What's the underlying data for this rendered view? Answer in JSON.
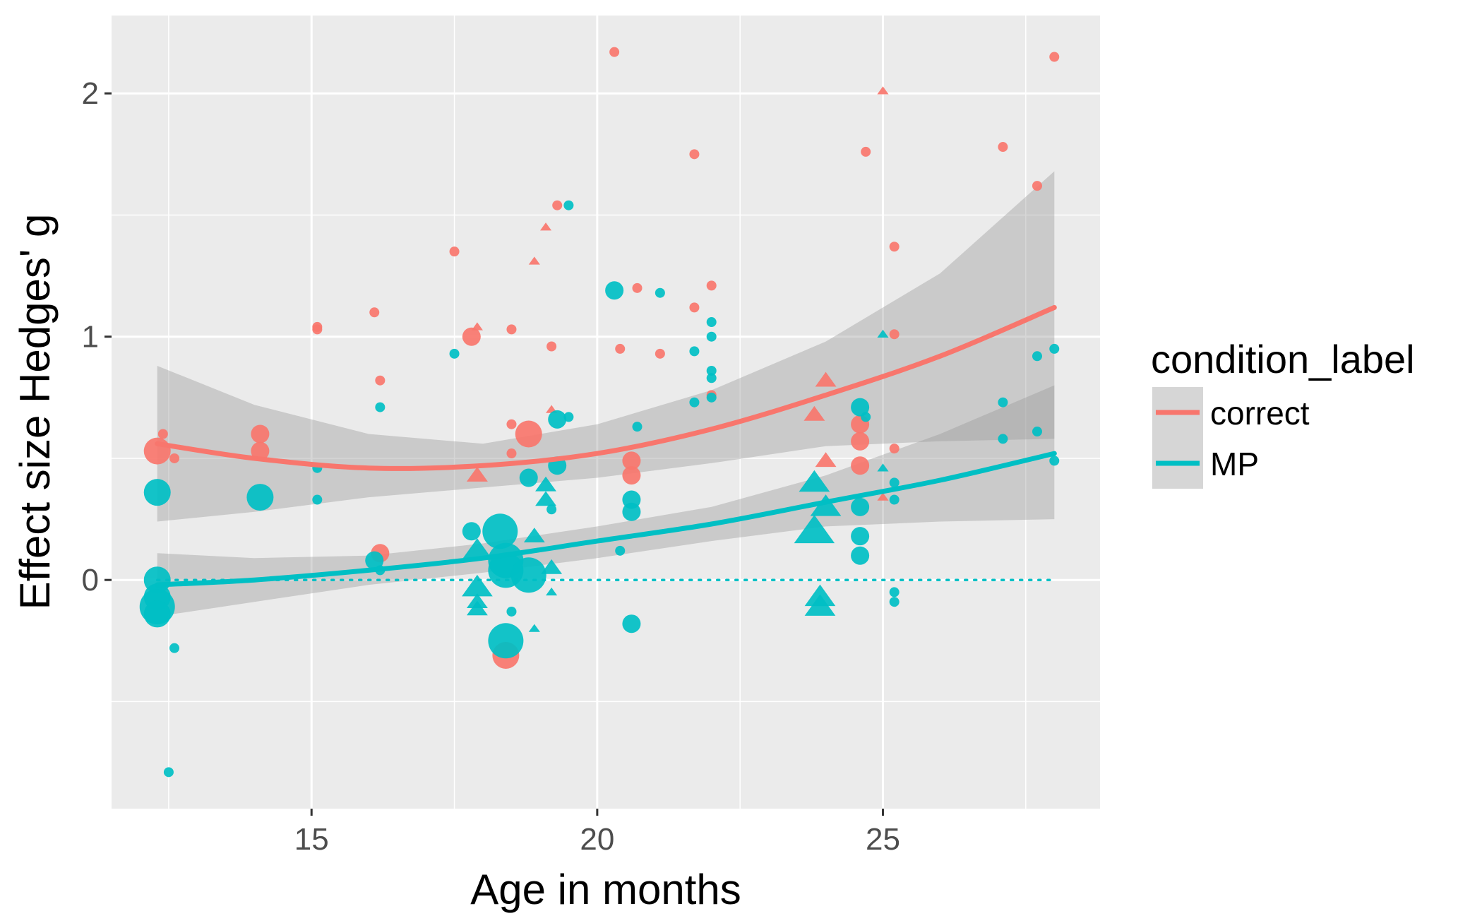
{
  "chart_data": {
    "type": "scatter",
    "xlabel": "Age in months",
    "ylabel": "Effect size Hedges' g",
    "xlim": [
      11.5,
      28.8
    ],
    "ylim": [
      -0.94,
      2.32
    ],
    "x_ticks": [
      15,
      20,
      25
    ],
    "y_ticks": [
      0,
      1,
      2
    ],
    "x_tick_labels": [
      "15",
      "20",
      "25"
    ],
    "y_tick_labels": [
      "0",
      "1",
      "2"
    ],
    "grid": true,
    "legend": {
      "title": "condition_label",
      "placement": "right",
      "entries": [
        "correct",
        "MP"
      ]
    },
    "colors": {
      "correct": "#F8766D",
      "MP": "#00BFC4",
      "panel": "#EBEBEB",
      "ribbon": "#999999"
    },
    "reference_line": {
      "y": 0,
      "style": "dotted",
      "x_range": [
        12.3,
        28
      ]
    },
    "series": [
      {
        "name": "correct",
        "smooth": {
          "x": [
            12.3,
            14,
            16,
            18,
            20,
            22,
            24,
            26,
            28
          ],
          "y": [
            0.56,
            0.5,
            0.46,
            0.47,
            0.52,
            0.62,
            0.76,
            0.92,
            1.12
          ],
          "lo": [
            0.24,
            0.28,
            0.34,
            0.38,
            0.42,
            0.48,
            0.55,
            0.57,
            0.58
          ],
          "hi": [
            0.88,
            0.72,
            0.6,
            0.56,
            0.64,
            0.78,
            0.98,
            1.26,
            1.68
          ]
        },
        "points": [
          {
            "x": 12.3,
            "y": 0.53,
            "size": 3,
            "shape": "circle"
          },
          {
            "x": 12.4,
            "y": 0.6,
            "size": 1,
            "shape": "circle"
          },
          {
            "x": 12.6,
            "y": 0.5,
            "size": 1,
            "shape": "circle"
          },
          {
            "x": 14.1,
            "y": 0.6,
            "size": 2,
            "shape": "circle"
          },
          {
            "x": 14.1,
            "y": 0.53,
            "size": 2,
            "shape": "circle"
          },
          {
            "x": 15.1,
            "y": 1.04,
            "size": 1,
            "shape": "circle"
          },
          {
            "x": 15.1,
            "y": 1.03,
            "size": 1,
            "shape": "circle"
          },
          {
            "x": 16.1,
            "y": 1.1,
            "size": 1,
            "shape": "circle"
          },
          {
            "x": 16.2,
            "y": 0.82,
            "size": 1,
            "shape": "circle"
          },
          {
            "x": 16.2,
            "y": 0.11,
            "size": 2,
            "shape": "circle"
          },
          {
            "x": 17.5,
            "y": 1.35,
            "size": 1,
            "shape": "circle"
          },
          {
            "x": 17.8,
            "y": 1.0,
            "size": 2,
            "shape": "circle"
          },
          {
            "x": 17.9,
            "y": 1.04,
            "size": 1,
            "shape": "triangle"
          },
          {
            "x": 17.9,
            "y": 0.43,
            "size": 2,
            "shape": "triangle"
          },
          {
            "x": 18.5,
            "y": 1.03,
            "size": 1,
            "shape": "circle"
          },
          {
            "x": 18.5,
            "y": 0.64,
            "size": 1,
            "shape": "circle"
          },
          {
            "x": 18.5,
            "y": 0.52,
            "size": 1,
            "shape": "circle"
          },
          {
            "x": 18.4,
            "y": -0.31,
            "size": 3,
            "shape": "circle"
          },
          {
            "x": 18.8,
            "y": 0.6,
            "size": 3,
            "shape": "circle"
          },
          {
            "x": 18.9,
            "y": 1.31,
            "size": 1,
            "shape": "triangle"
          },
          {
            "x": 19.1,
            "y": 1.45,
            "size": 1,
            "shape": "triangle"
          },
          {
            "x": 19.2,
            "y": 0.96,
            "size": 1,
            "shape": "circle"
          },
          {
            "x": 19.2,
            "y": 0.7,
            "size": 1,
            "shape": "triangle"
          },
          {
            "x": 19.3,
            "y": 1.54,
            "size": 1,
            "shape": "circle"
          },
          {
            "x": 20.3,
            "y": 2.17,
            "size": 1,
            "shape": "circle"
          },
          {
            "x": 20.4,
            "y": 0.95,
            "size": 1,
            "shape": "circle"
          },
          {
            "x": 20.6,
            "y": 0.49,
            "size": 2,
            "shape": "circle"
          },
          {
            "x": 20.6,
            "y": 0.43,
            "size": 2,
            "shape": "circle"
          },
          {
            "x": 20.7,
            "y": 1.2,
            "size": 1,
            "shape": "circle"
          },
          {
            "x": 21.1,
            "y": 0.93,
            "size": 1,
            "shape": "circle"
          },
          {
            "x": 21.7,
            "y": 1.75,
            "size": 1,
            "shape": "circle"
          },
          {
            "x": 21.7,
            "y": 1.12,
            "size": 1,
            "shape": "circle"
          },
          {
            "x": 22.0,
            "y": 1.21,
            "size": 1,
            "shape": "circle"
          },
          {
            "x": 22.0,
            "y": 0.76,
            "size": 1,
            "shape": "circle"
          },
          {
            "x": 23.8,
            "y": 0.68,
            "size": 2,
            "shape": "triangle"
          },
          {
            "x": 24.0,
            "y": 0.82,
            "size": 2,
            "shape": "triangle"
          },
          {
            "x": 24.0,
            "y": 0.49,
            "size": 2,
            "shape": "triangle"
          },
          {
            "x": 24.6,
            "y": 0.64,
            "size": 2,
            "shape": "circle"
          },
          {
            "x": 24.6,
            "y": 0.57,
            "size": 2,
            "shape": "circle"
          },
          {
            "x": 24.6,
            "y": 0.47,
            "size": 2,
            "shape": "circle"
          },
          {
            "x": 24.7,
            "y": 1.76,
            "size": 1,
            "shape": "circle"
          },
          {
            "x": 25.0,
            "y": 2.01,
            "size": 1,
            "shape": "triangle"
          },
          {
            "x": 25.0,
            "y": 0.34,
            "size": 1,
            "shape": "triangle"
          },
          {
            "x": 25.2,
            "y": 1.37,
            "size": 1,
            "shape": "circle"
          },
          {
            "x": 25.2,
            "y": 1.01,
            "size": 1,
            "shape": "circle"
          },
          {
            "x": 25.2,
            "y": 0.54,
            "size": 1,
            "shape": "circle"
          },
          {
            "x": 27.1,
            "y": 1.78,
            "size": 1,
            "shape": "circle"
          },
          {
            "x": 27.7,
            "y": 1.62,
            "size": 1,
            "shape": "circle"
          },
          {
            "x": 28.0,
            "y": 2.15,
            "size": 1,
            "shape": "circle"
          }
        ]
      },
      {
        "name": "MP",
        "smooth": {
          "x": [
            12.3,
            14,
            16,
            18,
            20,
            22,
            24,
            26,
            28
          ],
          "y": [
            -0.02,
            0.0,
            0.04,
            0.09,
            0.16,
            0.23,
            0.32,
            0.41,
            0.52
          ],
          "lo": [
            -0.15,
            -0.09,
            -0.02,
            0.03,
            0.09,
            0.16,
            0.22,
            0.24,
            0.25
          ],
          "hi": [
            0.11,
            0.09,
            0.1,
            0.15,
            0.22,
            0.3,
            0.43,
            0.6,
            0.8
          ]
        },
        "points": [
          {
            "x": 12.3,
            "y": 0.36,
            "size": 3,
            "shape": "circle"
          },
          {
            "x": 12.3,
            "y": 0.0,
            "size": 3,
            "shape": "circle"
          },
          {
            "x": 12.3,
            "y": -0.07,
            "size": 3,
            "shape": "circle"
          },
          {
            "x": 12.3,
            "y": -0.11,
            "size": 4,
            "shape": "circle"
          },
          {
            "x": 12.3,
            "y": -0.14,
            "size": 3,
            "shape": "circle"
          },
          {
            "x": 12.5,
            "y": -0.79,
            "size": 1,
            "shape": "circle"
          },
          {
            "x": 12.6,
            "y": -0.28,
            "size": 1,
            "shape": "circle"
          },
          {
            "x": 14.1,
            "y": 0.34,
            "size": 3,
            "shape": "circle"
          },
          {
            "x": 15.1,
            "y": 0.46,
            "size": 1,
            "shape": "circle"
          },
          {
            "x": 15.1,
            "y": 0.33,
            "size": 1,
            "shape": "circle"
          },
          {
            "x": 16.1,
            "y": 0.08,
            "size": 2,
            "shape": "circle"
          },
          {
            "x": 16.2,
            "y": 0.04,
            "size": 1,
            "shape": "circle"
          },
          {
            "x": 16.2,
            "y": 0.71,
            "size": 1,
            "shape": "circle"
          },
          {
            "x": 17.5,
            "y": 0.93,
            "size": 1,
            "shape": "circle"
          },
          {
            "x": 17.8,
            "y": 0.2,
            "size": 2,
            "shape": "circle"
          },
          {
            "x": 17.9,
            "y": 0.12,
            "size": 3,
            "shape": "triangle"
          },
          {
            "x": 17.9,
            "y": -0.03,
            "size": 3,
            "shape": "triangle"
          },
          {
            "x": 17.9,
            "y": -0.09,
            "size": 2,
            "shape": "triangle"
          },
          {
            "x": 17.9,
            "y": -0.12,
            "size": 2,
            "shape": "triangle"
          },
          {
            "x": 18.3,
            "y": 0.2,
            "size": 4,
            "shape": "circle"
          },
          {
            "x": 18.4,
            "y": 0.08,
            "size": 4,
            "shape": "circle"
          },
          {
            "x": 18.4,
            "y": 0.04,
            "size": 4,
            "shape": "circle"
          },
          {
            "x": 18.4,
            "y": -0.25,
            "size": 4,
            "shape": "circle"
          },
          {
            "x": 18.5,
            "y": -0.13,
            "size": 1,
            "shape": "circle"
          },
          {
            "x": 18.8,
            "y": 0.42,
            "size": 2,
            "shape": "circle"
          },
          {
            "x": 18.8,
            "y": 0.02,
            "size": 4,
            "shape": "circle"
          },
          {
            "x": 18.9,
            "y": 0.18,
            "size": 2,
            "shape": "triangle"
          },
          {
            "x": 18.9,
            "y": -0.2,
            "size": 1,
            "shape": "triangle"
          },
          {
            "x": 19.1,
            "y": 0.39,
            "size": 2,
            "shape": "triangle"
          },
          {
            "x": 19.1,
            "y": 0.33,
            "size": 2,
            "shape": "triangle"
          },
          {
            "x": 19.2,
            "y": 0.29,
            "size": 1,
            "shape": "circle"
          },
          {
            "x": 19.2,
            "y": 0.05,
            "size": 2,
            "shape": "triangle"
          },
          {
            "x": 19.2,
            "y": -0.05,
            "size": 1,
            "shape": "triangle"
          },
          {
            "x": 19.3,
            "y": 0.66,
            "size": 2,
            "shape": "circle"
          },
          {
            "x": 19.3,
            "y": 0.47,
            "size": 2,
            "shape": "circle"
          },
          {
            "x": 19.5,
            "y": 0.67,
            "size": 1,
            "shape": "circle"
          },
          {
            "x": 19.5,
            "y": 1.54,
            "size": 1,
            "shape": "circle"
          },
          {
            "x": 20.3,
            "y": 1.19,
            "size": 2,
            "shape": "circle"
          },
          {
            "x": 20.4,
            "y": 0.12,
            "size": 1,
            "shape": "circle"
          },
          {
            "x": 20.6,
            "y": 0.33,
            "size": 2,
            "shape": "circle"
          },
          {
            "x": 20.6,
            "y": 0.28,
            "size": 2,
            "shape": "circle"
          },
          {
            "x": 20.6,
            "y": -0.18,
            "size": 2,
            "shape": "circle"
          },
          {
            "x": 20.7,
            "y": 0.63,
            "size": 1,
            "shape": "circle"
          },
          {
            "x": 21.1,
            "y": 1.18,
            "size": 1,
            "shape": "circle"
          },
          {
            "x": 21.7,
            "y": 0.94,
            "size": 1,
            "shape": "circle"
          },
          {
            "x": 21.7,
            "y": 0.73,
            "size": 1,
            "shape": "circle"
          },
          {
            "x": 22.0,
            "y": 1.06,
            "size": 1,
            "shape": "circle"
          },
          {
            "x": 22.0,
            "y": 1.0,
            "size": 1,
            "shape": "circle"
          },
          {
            "x": 22.0,
            "y": 0.86,
            "size": 1,
            "shape": "circle"
          },
          {
            "x": 22.0,
            "y": 0.83,
            "size": 1,
            "shape": "circle"
          },
          {
            "x": 22.0,
            "y": 0.75,
            "size": 1,
            "shape": "circle"
          },
          {
            "x": 23.8,
            "y": 0.4,
            "size": 3,
            "shape": "triangle"
          },
          {
            "x": 23.8,
            "y": 0.2,
            "size": 4,
            "shape": "triangle"
          },
          {
            "x": 23.9,
            "y": -0.07,
            "size": 3,
            "shape": "triangle"
          },
          {
            "x": 23.9,
            "y": -0.11,
            "size": 3,
            "shape": "triangle"
          },
          {
            "x": 24.0,
            "y": 0.3,
            "size": 3,
            "shape": "triangle"
          },
          {
            "x": 24.6,
            "y": 0.71,
            "size": 2,
            "shape": "circle"
          },
          {
            "x": 24.6,
            "y": 0.3,
            "size": 2,
            "shape": "circle"
          },
          {
            "x": 24.6,
            "y": 0.18,
            "size": 2,
            "shape": "circle"
          },
          {
            "x": 24.6,
            "y": 0.1,
            "size": 2,
            "shape": "circle"
          },
          {
            "x": 24.7,
            "y": 0.67,
            "size": 1,
            "shape": "circle"
          },
          {
            "x": 25.0,
            "y": 1.01,
            "size": 1,
            "shape": "triangle"
          },
          {
            "x": 25.0,
            "y": 0.46,
            "size": 1,
            "shape": "triangle"
          },
          {
            "x": 25.2,
            "y": 0.4,
            "size": 1,
            "shape": "circle"
          },
          {
            "x": 25.2,
            "y": 0.33,
            "size": 1,
            "shape": "circle"
          },
          {
            "x": 25.2,
            "y": -0.05,
            "size": 1,
            "shape": "circle"
          },
          {
            "x": 25.2,
            "y": -0.09,
            "size": 1,
            "shape": "circle"
          },
          {
            "x": 27.1,
            "y": 0.73,
            "size": 1,
            "shape": "circle"
          },
          {
            "x": 27.1,
            "y": 0.58,
            "size": 1,
            "shape": "circle"
          },
          {
            "x": 27.7,
            "y": 0.92,
            "size": 1,
            "shape": "circle"
          },
          {
            "x": 27.7,
            "y": 0.61,
            "size": 1,
            "shape": "circle"
          },
          {
            "x": 28.0,
            "y": 0.95,
            "size": 1,
            "shape": "circle"
          },
          {
            "x": 28.0,
            "y": 0.49,
            "size": 1,
            "shape": "circle"
          }
        ]
      }
    ]
  }
}
